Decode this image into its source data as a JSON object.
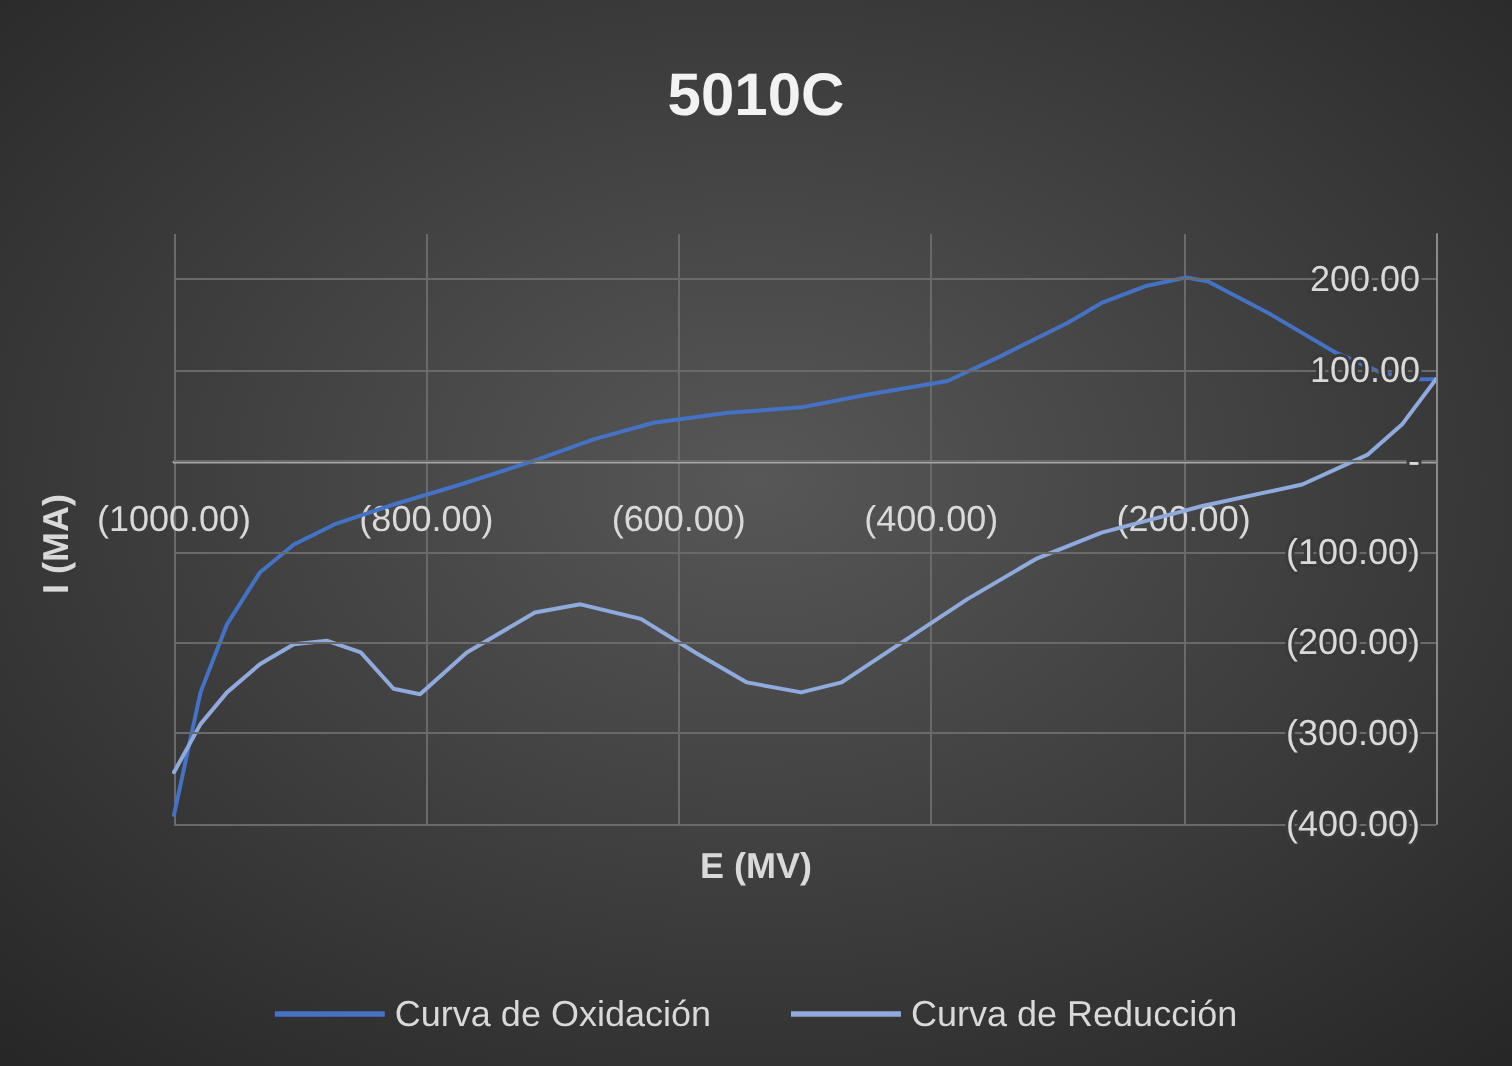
{
  "chart_data": {
    "type": "line",
    "title": "5010C",
    "xlabel": "E (MV)",
    "ylabel": "I (MA)",
    "xlim": [
      -1000,
      0
    ],
    "ylim": [
      -400,
      250
    ],
    "xticks": [
      {
        "value": -1000,
        "label": "(1000.00)"
      },
      {
        "value": -800,
        "label": "(800.00)"
      },
      {
        "value": -600,
        "label": "(600.00)"
      },
      {
        "value": -400,
        "label": "(400.00)"
      },
      {
        "value": -200,
        "label": "(200.00)"
      },
      {
        "value": 0,
        "label": null
      }
    ],
    "yticks": [
      {
        "value": -400,
        "label": "(400.00)"
      },
      {
        "value": -300,
        "label": "(300.00)"
      },
      {
        "value": -200,
        "label": "(200.00)"
      },
      {
        "value": -100,
        "label": "(100.00)"
      },
      {
        "value": 0,
        "label": "-"
      },
      {
        "value": 100,
        "label": "100.00"
      },
      {
        "value": 200,
        "label": "200.00"
      }
    ],
    "grid": true,
    "legend": "bottom",
    "marker": "none",
    "line_style": "solid",
    "series": [
      {
        "name": "Curva de Oxidación",
        "color": "#4472c4",
        "x": [
          -1000,
          -979,
          -958,
          -932,
          -905,
          -873,
          -826,
          -773,
          -715,
          -667,
          -620,
          -561,
          -503,
          -451,
          -387,
          -344,
          -292,
          -265,
          -229,
          -198,
          -181,
          -133,
          -79,
          -43,
          -16,
          0
        ],
        "values": [
          -390,
          -255,
          -180,
          -123,
          -92,
          -70,
          -48,
          -26,
          0,
          24,
          42,
          53,
          59,
          73,
          88,
          116,
          152,
          174,
          193,
          202,
          198,
          163,
          119,
          97,
          90,
          90
        ]
      },
      {
        "name": "Curva de Reducción",
        "color": "#8faadc",
        "x": [
          0,
          -27,
          -54,
          -106,
          -186,
          -265,
          -317,
          -371,
          -419,
          -471,
          -503,
          -546,
          -587,
          -630,
          -678,
          -714,
          -768,
          -805,
          -826,
          -852,
          -879,
          -905,
          -932,
          -958,
          -979,
          -1000
        ],
        "values": [
          90,
          40,
          7,
          -26,
          -50,
          -79,
          -108,
          -152,
          -196,
          -244,
          -255,
          -244,
          -211,
          -174,
          -158,
          -167,
          -211,
          -257,
          -251,
          -211,
          -198,
          -202,
          -224,
          -255,
          -290,
          -343
        ]
      }
    ]
  }
}
